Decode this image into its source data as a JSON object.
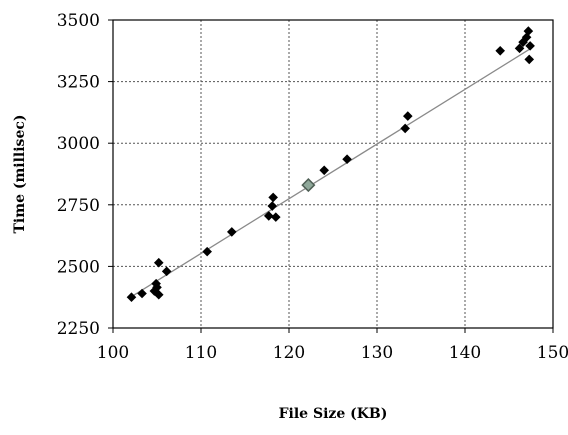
{
  "chart_data": {
    "type": "scatter",
    "title": "",
    "xlabel": "File Size (KB)",
    "ylabel": "Time (millisec)",
    "xlim": [
      100,
      150
    ],
    "ylim": [
      2250,
      3500
    ],
    "xticks": [
      100,
      110,
      120,
      130,
      140,
      150
    ],
    "yticks": [
      2250,
      2500,
      2750,
      3000,
      3250,
      3500
    ],
    "grid": "dotted",
    "legend": "none",
    "colors": {
      "points": "#000000",
      "highlight_fill": "#8fa89a",
      "highlight_stroke": "#4f5f55",
      "trendline": "#8a8a8a",
      "grid": "#555555"
    },
    "series": [
      {
        "values": [
          [
            102.1,
            2375
          ],
          [
            103.3,
            2390
          ],
          [
            104.7,
            2400
          ],
          [
            104.9,
            2430
          ],
          [
            105.0,
            2415
          ],
          [
            105.2,
            2385
          ],
          [
            105.2,
            2515
          ],
          [
            106.1,
            2480
          ],
          [
            110.7,
            2560
          ],
          [
            113.5,
            2640
          ],
          [
            117.7,
            2705
          ],
          [
            118.1,
            2745
          ],
          [
            118.2,
            2780
          ],
          [
            118.5,
            2700
          ],
          [
            124.0,
            2890
          ],
          [
            126.6,
            2935
          ],
          [
            133.2,
            3060
          ],
          [
            133.5,
            3110
          ],
          [
            144.0,
            3375
          ],
          [
            146.2,
            3385
          ],
          [
            146.6,
            3410
          ],
          [
            147.0,
            3430
          ],
          [
            147.2,
            3455
          ],
          [
            147.3,
            3340
          ],
          [
            147.4,
            3395
          ]
        ]
      }
    ],
    "highlight_point": [
      122.2,
      2830
    ],
    "trendline": {
      "x": [
        102.0,
        147.5
      ],
      "y": [
        2375,
        3385
      ]
    }
  }
}
